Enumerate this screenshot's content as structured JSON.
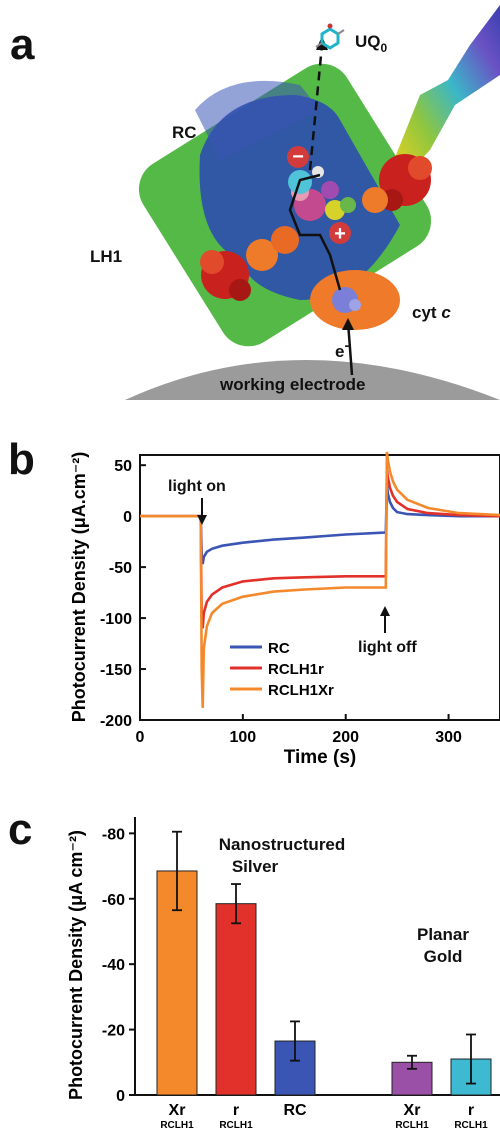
{
  "panel_a": {
    "letter": "a",
    "label_rc": "RC",
    "label_lh1": "LH1",
    "label_uq": "UQ",
    "label_uq_sub": "0",
    "label_cyt": "cyt",
    "label_cyt_c": "c",
    "label_electron": "e",
    "label_electron_sup": "-",
    "label_electrode": "working electrode",
    "minus_sign": "−",
    "plus_sign": "+"
  },
  "panel_b": {
    "letter": "b",
    "annotation_on": "light on",
    "annotation_off": "light off"
  },
  "panel_c": {
    "letter": "c",
    "group1_line1": "Nanostructured",
    "group1_line2": "Silver",
    "group2_line1": "Planar",
    "group2_line2": "Gold"
  },
  "chart_data": [
    {
      "type": "line",
      "panel": "b",
      "xlabel": "Time (s)",
      "ylabel": "Photocurrent Density (μA.cm⁻²)",
      "xlim": [
        0,
        350
      ],
      "ylim": [
        -200,
        60
      ],
      "xticks": [
        0,
        100,
        200,
        300
      ],
      "yticks": [
        50,
        0,
        -50,
        -100,
        -150,
        -200
      ],
      "grid": false,
      "legend_position": "bottom-left",
      "series": [
        {
          "name": "RC",
          "color": "#3a55b4",
          "x": [
            0,
            59,
            60,
            61,
            62,
            65,
            70,
            80,
            100,
            130,
            160,
            200,
            239,
            240,
            241,
            243,
            246,
            250,
            260,
            280,
            310,
            350
          ],
          "y": [
            0,
            0,
            -38,
            -47,
            -40,
            -35,
            -32,
            -29,
            -26,
            -23,
            -21,
            -18,
            -16,
            30,
            22,
            14,
            8,
            4,
            2,
            1,
            0,
            0
          ]
        },
        {
          "name": "RCLH1r",
          "color": "#e2312a",
          "x": [
            0,
            59,
            60,
            61,
            62,
            65,
            70,
            80,
            100,
            130,
            160,
            200,
            239,
            240,
            241,
            243,
            246,
            250,
            260,
            280,
            310,
            350
          ],
          "y": [
            0,
            0,
            -100,
            -110,
            -95,
            -84,
            -77,
            -70,
            -64,
            -61,
            -60,
            -59,
            -59,
            45,
            38,
            28,
            20,
            14,
            7,
            3,
            1,
            0
          ]
        },
        {
          "name": "RCLH1Xr",
          "color": "#f4892b",
          "x": [
            0,
            59,
            60,
            61,
            62,
            65,
            70,
            80,
            100,
            130,
            160,
            200,
            239,
            240,
            241,
            243,
            246,
            250,
            260,
            280,
            310,
            350
          ],
          "y": [
            0,
            0,
            -150,
            -188,
            -130,
            -108,
            -95,
            -86,
            -79,
            -74,
            -72,
            -70,
            -70,
            63,
            55,
            44,
            34,
            26,
            16,
            8,
            3,
            1
          ]
        }
      ],
      "annotations": [
        "light on",
        "light off"
      ]
    },
    {
      "type": "bar",
      "panel": "c",
      "ylabel": "Photocurrent Density (μA cm⁻²)",
      "ylim": [
        0,
        -85
      ],
      "yticks": [
        0,
        -20,
        -40,
        -60,
        -80
      ],
      "grid": false,
      "bars": [
        {
          "label": "Xr",
          "sublabel": "RCLH1",
          "value": -68.5,
          "error": 12,
          "color": "#f4892b",
          "group": "Nanostructured Silver"
        },
        {
          "label": "r",
          "sublabel": "RCLH1",
          "value": -58.5,
          "error": 6,
          "color": "#e2312a",
          "group": "Nanostructured Silver"
        },
        {
          "label": "RC",
          "sublabel": "",
          "value": -16.5,
          "error": 6,
          "color": "#3a55b4",
          "group": "Nanostructured Silver"
        },
        {
          "label": "Xr",
          "sublabel": "RCLH1",
          "value": -10,
          "error": 2,
          "color": "#9a50a6",
          "group": "Planar Gold"
        },
        {
          "label": "r",
          "sublabel": "RCLH1",
          "value": -11,
          "error": 7.5,
          "color": "#3dbad1",
          "group": "Planar Gold"
        }
      ]
    }
  ]
}
